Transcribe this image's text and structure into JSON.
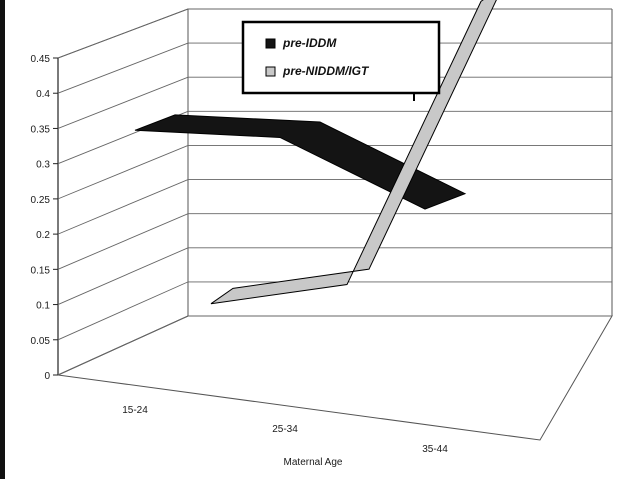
{
  "chart_data": {
    "type": "line",
    "style": "3d-ribbon",
    "categories": [
      "15-24",
      "25-34",
      "35-44"
    ],
    "series": [
      {
        "name": "pre-IDDM",
        "values": [
          0.27,
          0.26,
          0.16
        ],
        "color": "#141414"
      },
      {
        "name": "pre-NIDDM/IGT",
        "values": [
          0.06,
          0.07,
          0.45
        ],
        "color": "#c8c8c8"
      }
    ],
    "y_ticks": [
      "0",
      "0.05",
      "0.1",
      "0.15",
      "0.2",
      "0.25",
      "0.3",
      "0.35",
      "0.4",
      "0.45"
    ],
    "ylim": [
      0,
      0.45
    ],
    "xlabel": "Maternal Age",
    "ylabel": "",
    "grid": true,
    "legend_position": "top-right"
  }
}
